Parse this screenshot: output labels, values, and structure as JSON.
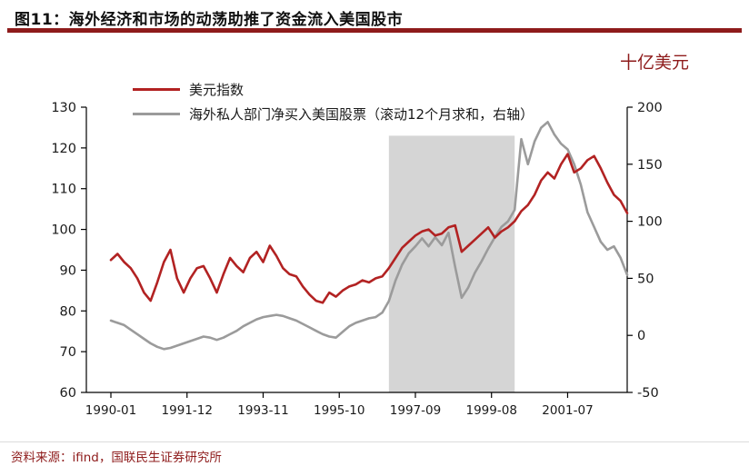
{
  "header": {
    "title": "图11：海外经济和市场的动荡助推了资金流入美国股市"
  },
  "footer": {
    "source": "资料来源：ifind，国联民生证券研究所"
  },
  "colors": {
    "accent": "#8e1b1b",
    "red_line": "#b22222",
    "gray_line": "#9b9b9b",
    "shade": "#d5d5d5",
    "axis": "#000000",
    "tick_text": "#1a1a1a"
  },
  "chart_data": {
    "type": "line",
    "title": "图11：海外经济和市场的动荡助推了资金流入美国股市",
    "unit_label": "十亿美元",
    "x_unit": "months since 1990-01 (step of 2 months)",
    "x": [
      0,
      2,
      4,
      6,
      8,
      10,
      12,
      14,
      16,
      18,
      20,
      22,
      24,
      26,
      28,
      30,
      32,
      34,
      36,
      38,
      40,
      42,
      44,
      46,
      48,
      50,
      52,
      54,
      56,
      58,
      60,
      62,
      64,
      66,
      68,
      70,
      72,
      74,
      76,
      78,
      80,
      82,
      84,
      86,
      88,
      90,
      92,
      94,
      96,
      98,
      100,
      102,
      104,
      106,
      108,
      110,
      112,
      114,
      116,
      118,
      120,
      122,
      124,
      126,
      128,
      130,
      132,
      134,
      136,
      138,
      140,
      142,
      144,
      146,
      148,
      150,
      152,
      154,
      156
    ],
    "x_ticks": [
      {
        "m": 0,
        "label": "1990-01"
      },
      {
        "m": 23,
        "label": "1991-12"
      },
      {
        "m": 46,
        "label": "1993-11"
      },
      {
        "m": 69,
        "label": "1995-10"
      },
      {
        "m": 92,
        "label": "1997-09"
      },
      {
        "m": 115,
        "label": "1999-08"
      },
      {
        "m": 138,
        "label": "2001-07"
      }
    ],
    "series": [
      {
        "name": "美元指数",
        "axis": "left",
        "color": "#b22222",
        "values": [
          92.5,
          94,
          92,
          90.5,
          88,
          84.5,
          82.5,
          87,
          92,
          95,
          88,
          84.5,
          88,
          90.5,
          91,
          88,
          84.5,
          89,
          93,
          91,
          89.5,
          93,
          94.5,
          92,
          96,
          93.5,
          90.5,
          89,
          88.5,
          86,
          84,
          82.5,
          82,
          84.5,
          83.5,
          85,
          86,
          86.5,
          87.5,
          87,
          88,
          88.5,
          90.5,
          93,
          95.5,
          97,
          98.5,
          99.5,
          100,
          98.5,
          99,
          100.5,
          101,
          94.5,
          96,
          97.5,
          99,
          100.5,
          98,
          99.5,
          100.5,
          102,
          104.5,
          106,
          108.5,
          112,
          114,
          112.5,
          116,
          118.5,
          114,
          115,
          117,
          118,
          115,
          111.5,
          108.5,
          107,
          104
        ]
      },
      {
        "name": "海外私人部门净买入美国股票（滚动12个月求和，右轴）",
        "axis": "right",
        "color": "#9b9b9b",
        "values": [
          13,
          11,
          9,
          5,
          1,
          -3,
          -7,
          -10,
          -12,
          -11,
          -9,
          -7,
          -5,
          -3,
          -1,
          -2,
          -4,
          -2,
          1,
          4,
          8,
          11,
          14,
          16,
          17,
          18,
          17,
          15,
          13,
          10,
          7,
          4,
          1,
          -1,
          -2,
          3,
          8,
          11,
          13,
          15,
          16,
          20,
          30,
          48,
          62,
          72,
          78,
          85,
          78,
          86,
          79,
          90,
          60,
          33,
          42,
          55,
          65,
          76,
          86,
          95,
          100,
          110,
          172,
          150,
          170,
          182,
          187,
          176,
          168,
          163,
          150,
          132,
          108,
          95,
          82,
          75,
          78,
          68,
          53
        ]
      }
    ],
    "left_axis": {
      "min": 60,
      "max": 130,
      "ticks": [
        130,
        120,
        110,
        100,
        90,
        80,
        70,
        60
      ]
    },
    "right_axis": {
      "min": -50,
      "max": 200,
      "ticks": [
        200,
        150,
        100,
        50,
        0,
        -50
      ],
      "label": "十亿美元"
    },
    "shaded_region": {
      "start_month": 84,
      "end_month": 122,
      "approx_start": "1997-01",
      "approx_end": "2000-03",
      "top_value_left_axis": 123
    },
    "legend_position": "top-left",
    "grid": false
  }
}
